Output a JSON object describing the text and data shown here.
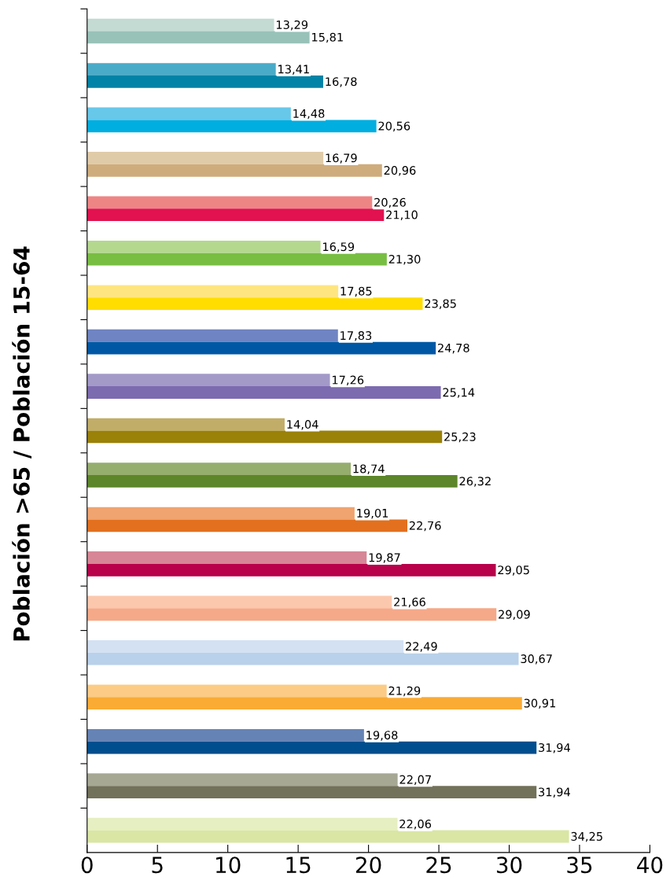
{
  "chart_data": {
    "type": "bar",
    "orientation": "horizontal",
    "ylabel": "Población >65 / Población 15-64",
    "categories": [
      null,
      null,
      null,
      null,
      null,
      null,
      null,
      null,
      null,
      null,
      null,
      null,
      null,
      null,
      null,
      null,
      null,
      null,
      null
    ],
    "series": [
      {
        "colors": [
          "#c3dbd3",
          "#4aabc8",
          "#67c8ea",
          "#e0cba9",
          "#ee8585",
          "#b4d88e",
          "#ffe57f",
          "#6f84c2",
          "#a49ac8",
          "#c2ad68",
          "#95ad6d",
          "#f0a46f",
          "#d68696",
          "#fbc8ae",
          "#d3e1f3",
          "#fccb85",
          "#6683b5",
          "#a7a894",
          "#e5efc1"
        ],
        "values": [
          13.29,
          13.41,
          14.48,
          16.79,
          20.26,
          16.59,
          17.85,
          17.83,
          17.26,
          14.04,
          18.74,
          19.01,
          19.87,
          21.66,
          22.49,
          21.29,
          19.68,
          22.07,
          22.06
        ],
        "value_labels": [
          "13,29",
          "13,41",
          "14,48",
          "16,79",
          "20,26",
          "16,59",
          "17,85",
          "17,83",
          "17,26",
          "14,04",
          "18,74",
          "19,01",
          "19,87",
          "21,66",
          "22,49",
          "21,29",
          "19,68",
          "22,07",
          "22,06"
        ]
      },
      {
        "colors": [
          "#98c2b8",
          "#0083a6",
          "#00aee0",
          "#cfac7c",
          "#e2114f",
          "#78be43",
          "#ffdd00",
          "#0058a5",
          "#7d6bb0",
          "#9a8108",
          "#5c8629",
          "#e3701e",
          "#b8004b",
          "#f5a988",
          "#b9d1ea",
          "#faab34",
          "#004e8e",
          "#727159",
          "#d9e6a4"
        ],
        "values": [
          15.81,
          16.78,
          20.56,
          20.96,
          21.1,
          21.3,
          23.85,
          24.78,
          25.14,
          25.23,
          26.32,
          22.76,
          29.05,
          29.09,
          30.67,
          30.91,
          31.94,
          31.94,
          34.25
        ],
        "value_labels": [
          "15,81",
          "16,78",
          "20,56",
          "20,96",
          "21,10",
          "21,30",
          "23,85",
          "24,78",
          "25,14",
          "25,23",
          "26,32",
          "22,76",
          "29,05",
          "29,09",
          "30,67",
          "30,91",
          "31,94",
          "31,94",
          "34,25"
        ]
      }
    ],
    "xlim": [
      0,
      40
    ],
    "xticks": [
      0,
      5,
      10,
      15,
      20,
      25,
      30,
      35,
      40
    ],
    "grid": false,
    "legend": false
  }
}
